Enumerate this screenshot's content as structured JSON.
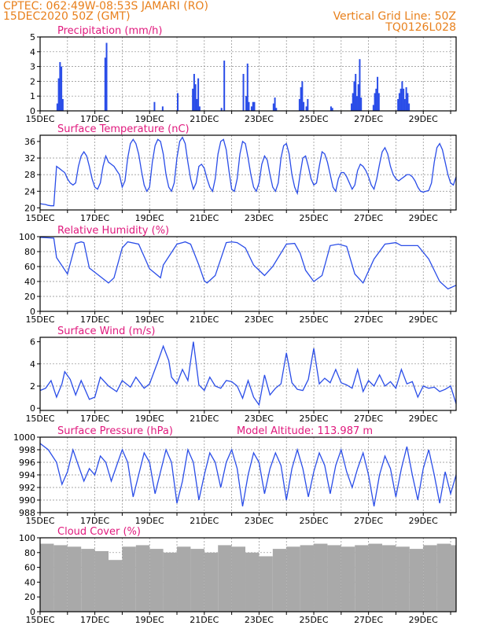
{
  "header": {
    "left_line1": "CPTEC:   062:49W-08:53S   JAMARI (RO)",
    "left_line2": "15DEC2020 50Z (GMT)",
    "right_line1": "Vertical Grid Line: 50Z",
    "right_line2": "TQ0126L028"
  },
  "colors": {
    "header": "#e8801c",
    "title": "#e0197d",
    "series": "#2a4de8",
    "cloud": "#a9a9a9",
    "grid": "#8a8a8a"
  },
  "chart_data": [
    {
      "type": "bar",
      "title": "Precipitation (mm/h)",
      "xlabels": [
        "15DEC",
        "17DEC",
        "19DEC",
        "21DEC",
        "23DEC",
        "25DEC",
        "27DEC",
        "29DEC"
      ],
      "xlim": [
        0,
        15.2
      ],
      "ylim": [
        0,
        5
      ],
      "yticks": [
        0,
        1,
        2,
        3,
        4,
        5
      ],
      "grid": true,
      "x": [
        0.6,
        0.65,
        0.7,
        0.75,
        0.8,
        2.35,
        2.4,
        4.15,
        4.45,
        5.0,
        5.55,
        5.6,
        5.65,
        5.7,
        5.75,
        5.8,
        6.6,
        6.7,
        7.4,
        7.5,
        7.55,
        7.6,
        7.7,
        7.75,
        7.8,
        8.5,
        8.55,
        8.6,
        9.45,
        9.5,
        9.55,
        9.6,
        9.7,
        9.75,
        10.6,
        10.65,
        11.35,
        11.4,
        11.45,
        11.5,
        11.55,
        11.6,
        11.65,
        11.7,
        12.15,
        12.2,
        12.25,
        12.3,
        12.35,
        13.05,
        13.1,
        13.15,
        13.2,
        13.25,
        13.3,
        13.35,
        13.4,
        13.45
      ],
      "values": [
        0.5,
        2.2,
        3.3,
        3.0,
        0.8,
        3.6,
        4.6,
        0.6,
        0.3,
        1.2,
        1.5,
        2.5,
        1.8,
        0.8,
        2.2,
        0.3,
        0.2,
        3.4,
        2.5,
        1.0,
        3.2,
        0.6,
        0.3,
        0.6,
        0.6,
        0.5,
        0.9,
        0.2,
        0.8,
        1.6,
        2.0,
        0.6,
        0.3,
        0.8,
        0.3,
        0.2,
        0.5,
        1.2,
        2.0,
        2.5,
        1.0,
        1.8,
        3.5,
        0.9,
        0.4,
        1.2,
        1.5,
        2.3,
        1.2,
        0.8,
        1.2,
        1.5,
        2.0,
        1.5,
        0.8,
        1.6,
        1.2,
        0.5
      ]
    },
    {
      "type": "line",
      "title": "Surface Temperature (nC)",
      "xlabels": [
        "15DEC",
        "17DEC",
        "19DEC",
        "21DEC",
        "23DEC",
        "25DEC",
        "27DEC",
        "29DEC"
      ],
      "xlim": [
        0,
        15.2
      ],
      "ylim": [
        19.5,
        37.5
      ],
      "yticks": [
        20,
        24,
        28,
        32,
        36
      ],
      "grid": true,
      "x": [
        0,
        0.1,
        0.2,
        0.3,
        0.4,
        0.5,
        0.6,
        0.7,
        0.8,
        0.9,
        1.0,
        1.1,
        1.2,
        1.3,
        1.4,
        1.5,
        1.6,
        1.7,
        1.8,
        1.9,
        2.0,
        2.1,
        2.2,
        2.3,
        2.4,
        2.5,
        2.6,
        2.7,
        2.8,
        2.9,
        3.0,
        3.1,
        3.2,
        3.3,
        3.4,
        3.5,
        3.6,
        3.7,
        3.8,
        3.9,
        4.0,
        4.1,
        4.2,
        4.3,
        4.4,
        4.5,
        4.6,
        4.7,
        4.8,
        4.9,
        5.0,
        5.1,
        5.2,
        5.3,
        5.4,
        5.5,
        5.6,
        5.7,
        5.8,
        5.9,
        6.0,
        6.1,
        6.2,
        6.3,
        6.4,
        6.5,
        6.6,
        6.7,
        6.8,
        6.9,
        7.0,
        7.1,
        7.2,
        7.3,
        7.4,
        7.5,
        7.6,
        7.7,
        7.8,
        7.9,
        8.0,
        8.1,
        8.2,
        8.3,
        8.4,
        8.5,
        8.6,
        8.7,
        8.8,
        8.9,
        9.0,
        9.1,
        9.2,
        9.3,
        9.4,
        9.5,
        9.6,
        9.7,
        9.8,
        9.9,
        10.0,
        10.1,
        10.2,
        10.3,
        10.4,
        10.5,
        10.6,
        10.7,
        10.8,
        10.9,
        11.0,
        11.1,
        11.2,
        11.3,
        11.4,
        11.5,
        11.6,
        11.7,
        11.8,
        11.9,
        12.0,
        12.1,
        12.2,
        12.3,
        12.4,
        12.5,
        12.6,
        12.7,
        12.8,
        12.9,
        13.0,
        13.1,
        13.2,
        13.3,
        13.4,
        13.5,
        13.6,
        13.7,
        13.8,
        13.9,
        14.0,
        14.1,
        14.2,
        14.3,
        14.4,
        14.5,
        14.6,
        14.7,
        14.8,
        14.9,
        15.0,
        15.1,
        15.2
      ],
      "values": [
        21.0,
        20.9,
        20.8,
        20.6,
        20.5,
        20.5,
        30.0,
        29.5,
        29.0,
        28.5,
        27.0,
        26.0,
        25.5,
        26.0,
        30.0,
        32.5,
        33.5,
        32.5,
        30.0,
        27.0,
        25.0,
        24.5,
        26.0,
        30.0,
        32.5,
        31.0,
        30.5,
        30.0,
        29.0,
        28.0,
        25.0,
        26.5,
        32.0,
        35.5,
        36.5,
        35.5,
        33.0,
        29.0,
        25.5,
        24.0,
        25.0,
        31.0,
        35.0,
        36.5,
        36.0,
        33.0,
        28.0,
        25.0,
        24.0,
        26.0,
        32.0,
        36.0,
        37.0,
        35.5,
        31.0,
        27.0,
        24.5,
        26.0,
        30.0,
        30.5,
        29.5,
        27.0,
        25.0,
        24.0,
        27.0,
        33.0,
        36.0,
        36.5,
        34.0,
        29.0,
        24.5,
        24.0,
        27.0,
        33.0,
        36.0,
        35.5,
        32.0,
        28.0,
        25.0,
        24.0,
        26.0,
        30.5,
        32.5,
        31.5,
        28.0,
        25.0,
        24.0,
        26.0,
        32.0,
        35.0,
        35.5,
        33.0,
        28.0,
        25.0,
        23.5,
        28.0,
        32.0,
        32.5,
        30.0,
        27.0,
        25.5,
        26.0,
        30.0,
        33.5,
        33.0,
        31.0,
        28.0,
        25.0,
        24.0,
        27.0,
        28.5,
        28.5,
        27.5,
        26.0,
        24.5,
        25.5,
        29.0,
        30.5,
        30.0,
        29.0,
        27.5,
        25.5,
        24.5,
        27.0,
        30.5,
        33.5,
        34.5,
        33.0,
        30.0,
        28.0,
        27.0,
        26.5,
        27.0,
        27.5,
        28.0,
        28.0,
        27.5,
        26.5,
        25.0,
        24.0,
        23.8,
        24.0,
        24.2,
        26.0,
        31.0,
        34.5,
        35.5,
        34.0,
        31.0,
        28.0,
        26.0,
        25.5,
        27.5
      ]
    },
    {
      "type": "line",
      "title": "Relative Humidity (%)",
      "xlabels": [
        "15DEC",
        "17DEC",
        "19DEC",
        "21DEC",
        "23DEC",
        "25DEC",
        "27DEC",
        "29DEC"
      ],
      "xlim": [
        0,
        15.2
      ],
      "ylim": [
        0,
        100
      ],
      "yticks": [
        0,
        20,
        40,
        60,
        80,
        100
      ],
      "grid": true,
      "x": [
        0,
        0.5,
        0.6,
        1.0,
        1.3,
        1.5,
        1.6,
        1.8,
        2.5,
        2.7,
        3.0,
        3.2,
        3.6,
        4.0,
        4.4,
        4.5,
        5.0,
        5.2,
        5.3,
        5.5,
        5.8,
        6.0,
        6.1,
        6.4,
        6.8,
        7.0,
        7.2,
        7.5,
        7.8,
        8.2,
        8.5,
        9.0,
        9.3,
        9.5,
        9.7,
        10.0,
        10.3,
        10.6,
        10.9,
        11.2,
        11.5,
        11.8,
        12.2,
        12.6,
        13.0,
        13.2,
        13.5,
        13.8,
        14.2,
        14.6,
        14.9,
        15.2
      ],
      "values": [
        99,
        98,
        72,
        50,
        91,
        93,
        92,
        58,
        38,
        45,
        85,
        93,
        90,
        57,
        45,
        62,
        90,
        92,
        93,
        90,
        62,
        41,
        38,
        48,
        92,
        93,
        92,
        85,
        62,
        48,
        60,
        90,
        91,
        78,
        55,
        40,
        48,
        88,
        90,
        87,
        50,
        38,
        70,
        90,
        92,
        88,
        88,
        88,
        70,
        40,
        30,
        35
      ]
    },
    {
      "type": "line",
      "title": "Surface Wind (m/s)",
      "xlabels": [
        "15DEC",
        "17DEC",
        "19DEC",
        "21DEC",
        "23DEC",
        "25DEC",
        "27DEC",
        "29DEC"
      ],
      "xlim": [
        0,
        15.2
      ],
      "ylim": [
        -0.2,
        6.4
      ],
      "yticks": [
        0,
        2,
        4,
        6
      ],
      "grid": true,
      "x": [
        0,
        0.2,
        0.4,
        0.6,
        0.8,
        0.9,
        1.1,
        1.3,
        1.5,
        1.8,
        2.0,
        2.2,
        2.5,
        2.8,
        3.0,
        3.3,
        3.5,
        3.8,
        4.0,
        4.3,
        4.5,
        4.7,
        4.8,
        5.0,
        5.2,
        5.4,
        5.6,
        5.8,
        6.0,
        6.2,
        6.4,
        6.6,
        6.8,
        7.0,
        7.2,
        7.4,
        7.6,
        7.8,
        8.0,
        8.2,
        8.4,
        8.6,
        8.8,
        9.0,
        9.2,
        9.4,
        9.6,
        9.8,
        10.0,
        10.2,
        10.4,
        10.6,
        10.8,
        11.0,
        11.2,
        11.4,
        11.6,
        11.8,
        12.0,
        12.2,
        12.4,
        12.6,
        12.8,
        13.0,
        13.2,
        13.4,
        13.6,
        13.8,
        14.0,
        14.2,
        14.4,
        14.6,
        14.8,
        15.0,
        15.2
      ],
      "values": [
        1.6,
        1.8,
        2.5,
        1.0,
        2.2,
        3.3,
        2.6,
        1.2,
        2.5,
        0.8,
        1.0,
        2.8,
        2.0,
        1.5,
        2.5,
        1.9,
        2.8,
        1.8,
        2.2,
        4.2,
        5.6,
        4.3,
        2.8,
        2.2,
        3.5,
        2.5,
        6.0,
        2.1,
        1.6,
        2.8,
        2.0,
        1.8,
        2.5,
        2.4,
        2.0,
        0.9,
        2.5,
        1.0,
        0.3,
        3.0,
        1.2,
        1.8,
        2.2,
        5.0,
        2.3,
        1.7,
        1.6,
        2.6,
        5.4,
        2.2,
        2.7,
        2.3,
        3.5,
        2.3,
        2.1,
        1.8,
        3.5,
        1.5,
        2.5,
        2.0,
        3.0,
        2.0,
        2.4,
        1.8,
        3.5,
        2.2,
        2.4,
        1.0,
        2.0,
        1.8,
        1.9,
        1.5,
        1.7,
        2.0,
        0.4
      ]
    },
    {
      "type": "line",
      "title": "Surface Pressure (hPa)",
      "annotation": "Model Altitude: 113.987 m",
      "xlabels": [
        "15DEC",
        "17DEC",
        "19DEC",
        "21DEC",
        "23DEC",
        "25DEC",
        "27DEC",
        "29DEC"
      ],
      "xlim": [
        0,
        15.2
      ],
      "ylim": [
        988,
        1000
      ],
      "yticks": [
        988,
        990,
        992,
        994,
        996,
        998,
        1000
      ],
      "grid": true,
      "x": [
        0,
        0.3,
        0.6,
        0.8,
        1.0,
        1.2,
        1.4,
        1.6,
        1.8,
        2.0,
        2.2,
        2.4,
        2.6,
        2.8,
        3.0,
        3.2,
        3.4,
        3.6,
        3.8,
        4.0,
        4.2,
        4.4,
        4.6,
        4.8,
        5.0,
        5.2,
        5.4,
        5.6,
        5.8,
        6.0,
        6.2,
        6.4,
        6.6,
        6.8,
        7.0,
        7.2,
        7.4,
        7.6,
        7.8,
        8.0,
        8.2,
        8.4,
        8.6,
        8.8,
        9.0,
        9.2,
        9.4,
        9.6,
        9.8,
        10.0,
        10.2,
        10.4,
        10.6,
        10.8,
        11.0,
        11.2,
        11.4,
        11.6,
        11.8,
        12.0,
        12.2,
        12.4,
        12.6,
        12.8,
        13.0,
        13.2,
        13.4,
        13.6,
        13.8,
        14.0,
        14.2,
        14.4,
        14.6,
        14.8,
        15.0,
        15.2
      ],
      "values": [
        999.0,
        998.0,
        996.0,
        992.5,
        994.5,
        998.0,
        995.5,
        993.0,
        995.0,
        994.0,
        997.0,
        996.0,
        993.0,
        995.5,
        998.0,
        996.0,
        990.5,
        994.0,
        997.5,
        996.0,
        991.0,
        994.5,
        998.0,
        996.0,
        989.5,
        993.0,
        998.0,
        996.0,
        990.0,
        994.0,
        997.5,
        996.0,
        992.0,
        996.0,
        998.0,
        995.0,
        989.0,
        994.0,
        997.5,
        996.0,
        991.0,
        995.0,
        997.5,
        995.5,
        990.0,
        995.0,
        998.0,
        995.0,
        990.5,
        994.5,
        997.5,
        995.5,
        991.0,
        995.5,
        998.0,
        994.5,
        992.0,
        995.0,
        997.5,
        994.0,
        989.0,
        994.0,
        997.0,
        995.0,
        990.5,
        995.0,
        998.5,
        994.0,
        990.0,
        995.0,
        998.0,
        994.0,
        989.5,
        994.5,
        991.0,
        994.0
      ]
    },
    {
      "type": "bar",
      "title": "Cloud Cover (%)",
      "xlabels": [
        "15DEC",
        "17DEC",
        "19DEC",
        "21DEC",
        "23DEC",
        "25DEC",
        "27DEC",
        "29DEC"
      ],
      "xlim": [
        0,
        15.2
      ],
      "ylim": [
        0,
        100
      ],
      "yticks": [
        0,
        20,
        40,
        60,
        80,
        100
      ],
      "grid": true,
      "x": [
        0,
        0.5,
        1.0,
        1.5,
        2.0,
        2.5,
        3.0,
        3.5,
        4.0,
        4.5,
        5.0,
        5.5,
        6.0,
        6.5,
        7.0,
        7.5,
        8.0,
        8.5,
        9.0,
        9.5,
        10.0,
        10.5,
        11.0,
        11.5,
        12.0,
        12.5,
        13.0,
        13.5,
        14.0,
        14.5,
        15.0
      ],
      "values": [
        92,
        90,
        88,
        85,
        82,
        70,
        88,
        90,
        85,
        80,
        88,
        85,
        80,
        90,
        88,
        80,
        75,
        85,
        88,
        90,
        92,
        90,
        88,
        90,
        92,
        90,
        88,
        85,
        90,
        92,
        90
      ]
    }
  ]
}
